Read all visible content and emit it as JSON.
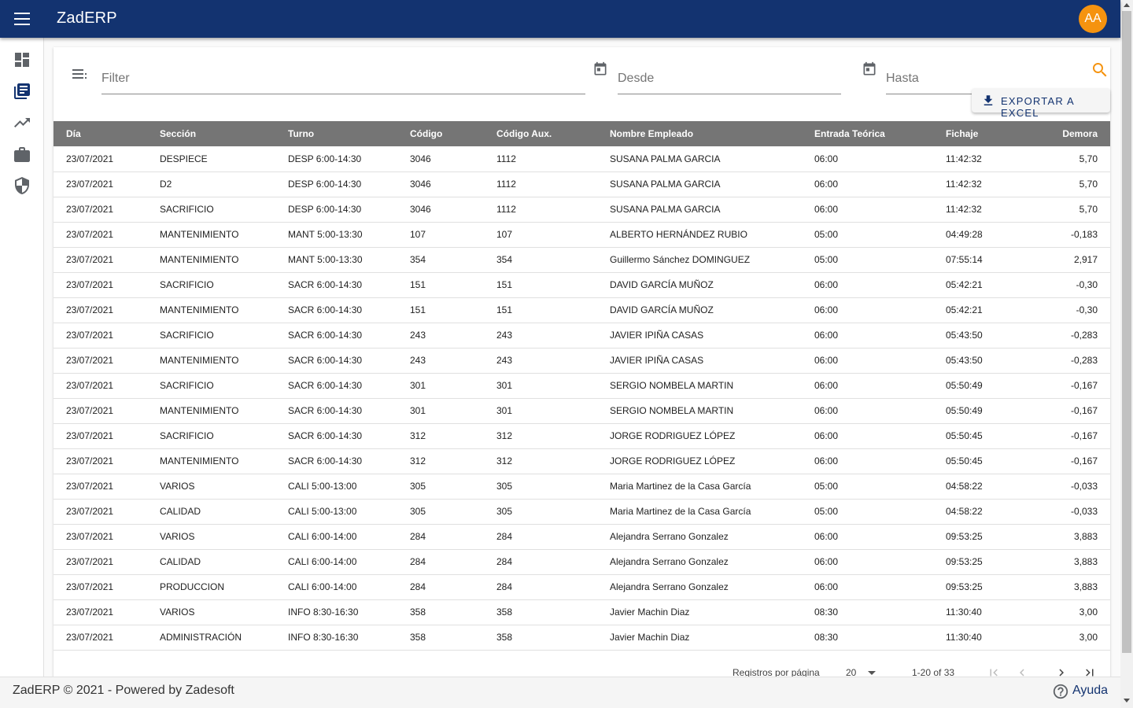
{
  "app": {
    "title": "ZadERP",
    "avatar_initials": "AA"
  },
  "filters": {
    "filter_placeholder": "Filter",
    "desde_placeholder": "Desde",
    "hasta_placeholder": "Hasta"
  },
  "actions": {
    "export_label": "EXPORTAR A EXCEL"
  },
  "table": {
    "headers": [
      "Día",
      "Sección",
      "Turno",
      "Código",
      "Código Aux.",
      "Nombre Empleado",
      "Entrada Teórica",
      "Fichaje",
      "Demora"
    ],
    "rows": [
      [
        "23/07/2021",
        "DESPIECE",
        "DESP 6:00-14:30",
        "3046",
        "1112",
        "SUSANA PALMA GARCIA",
        "06:00",
        "11:42:32",
        "5,70"
      ],
      [
        "23/07/2021",
        "D2",
        "DESP 6:00-14:30",
        "3046",
        "1112",
        "SUSANA PALMA GARCIA",
        "06:00",
        "11:42:32",
        "5,70"
      ],
      [
        "23/07/2021",
        "SACRIFICIO",
        "DESP 6:00-14:30",
        "3046",
        "1112",
        "SUSANA PALMA GARCIA",
        "06:00",
        "11:42:32",
        "5,70"
      ],
      [
        "23/07/2021",
        "MANTENIMIENTO",
        "MANT 5:00-13:30",
        "107",
        "107",
        "ALBERTO HERNÁNDEZ RUBIO",
        "05:00",
        "04:49:28",
        "-0,183"
      ],
      [
        "23/07/2021",
        "MANTENIMIENTO",
        "MANT 5:00-13:30",
        "354",
        "354",
        "Guillermo Sánchez DOMINGUEZ",
        "05:00",
        "07:55:14",
        "2,917"
      ],
      [
        "23/07/2021",
        "SACRIFICIO",
        "SACR 6:00-14:30",
        "151",
        "151",
        "DAVID GARCÍA MUÑOZ",
        "06:00",
        "05:42:21",
        "-0,30"
      ],
      [
        "23/07/2021",
        "MANTENIMIENTO",
        "SACR 6:00-14:30",
        "151",
        "151",
        "DAVID GARCÍA MUÑOZ",
        "06:00",
        "05:42:21",
        "-0,30"
      ],
      [
        "23/07/2021",
        "SACRIFICIO",
        "SACR 6:00-14:30",
        "243",
        "243",
        "JAVIER IPIÑA CASAS",
        "06:00",
        "05:43:50",
        "-0,283"
      ],
      [
        "23/07/2021",
        "MANTENIMIENTO",
        "SACR 6:00-14:30",
        "243",
        "243",
        "JAVIER IPIÑA CASAS",
        "06:00",
        "05:43:50",
        "-0,283"
      ],
      [
        "23/07/2021",
        "SACRIFICIO",
        "SACR 6:00-14:30",
        "301",
        "301",
        "SERGIO NOMBELA MARTIN",
        "06:00",
        "05:50:49",
        "-0,167"
      ],
      [
        "23/07/2021",
        "MANTENIMIENTO",
        "SACR 6:00-14:30",
        "301",
        "301",
        "SERGIO NOMBELA MARTIN",
        "06:00",
        "05:50:49",
        "-0,167"
      ],
      [
        "23/07/2021",
        "SACRIFICIO",
        "SACR 6:00-14:30",
        "312",
        "312",
        "JORGE RODRIGUEZ LÓPEZ",
        "06:00",
        "05:50:45",
        "-0,167"
      ],
      [
        "23/07/2021",
        "MANTENIMIENTO",
        "SACR 6:00-14:30",
        "312",
        "312",
        "JORGE RODRIGUEZ LÓPEZ",
        "06:00",
        "05:50:45",
        "-0,167"
      ],
      [
        "23/07/2021",
        "VARIOS",
        "CALI 5:00-13:00",
        "305",
        "305",
        "Maria Martinez de la Casa García",
        "05:00",
        "04:58:22",
        "-0,033"
      ],
      [
        "23/07/2021",
        "CALIDAD",
        "CALI 5:00-13:00",
        "305",
        "305",
        "Maria Martinez de la Casa García",
        "05:00",
        "04:58:22",
        "-0,033"
      ],
      [
        "23/07/2021",
        "VARIOS",
        "CALI 6:00-14:00",
        "284",
        "284",
        "Alejandra Serrano Gonzalez",
        "06:00",
        "09:53:25",
        "3,883"
      ],
      [
        "23/07/2021",
        "CALIDAD",
        "CALI 6:00-14:00",
        "284",
        "284",
        "Alejandra Serrano Gonzalez",
        "06:00",
        "09:53:25",
        "3,883"
      ],
      [
        "23/07/2021",
        "PRODUCCION",
        "CALI 6:00-14:00",
        "284",
        "284",
        "Alejandra Serrano Gonzalez",
        "06:00",
        "09:53:25",
        "3,883"
      ],
      [
        "23/07/2021",
        "VARIOS",
        "INFO 8:30-16:30",
        "358",
        "358",
        "Javier Machin Diaz",
        "08:30",
        "11:30:40",
        "3,00"
      ],
      [
        "23/07/2021",
        "ADMINISTRACIÓN",
        "INFO 8:30-16:30",
        "358",
        "358",
        "Javier Machin Diaz",
        "08:30",
        "11:30:40",
        "3,00"
      ]
    ]
  },
  "pagination": {
    "rows_per_page_label": "Registros por página",
    "rows_per_page_value": "20",
    "range_label": "1-20 of 33"
  },
  "footer": {
    "copyright": "ZadERP © 2021 - Powered by Zadesoft",
    "help_label": "Ayuda"
  },
  "icons": {
    "menu": "menu-icon",
    "sidebar": [
      "dashboard-icon",
      "library-books-icon",
      "trending-up-icon",
      "briefcase-icon",
      "shield-icon"
    ],
    "filter": "filter-list-icon",
    "calendar": "calendar-icon",
    "search": "search-icon",
    "download": "download-icon",
    "help": "help-circle-icon",
    "pager": [
      "first-page-icon",
      "prev-page-icon",
      "next-page-icon",
      "last-page-icon"
    ]
  },
  "colors": {
    "primary": "#133370",
    "accent": "#f5930f",
    "header_bg": "#757575"
  }
}
